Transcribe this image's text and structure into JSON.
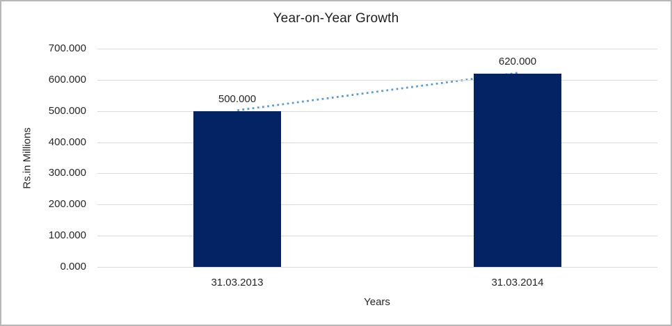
{
  "chart_data": {
    "type": "bar",
    "title": "Year-on-Year Growth",
    "categories": [
      "31.03.2013",
      "31.03.2014"
    ],
    "values": [
      500,
      620
    ],
    "data_labels": [
      "500.000",
      "620.000"
    ],
    "xlabel": "Years",
    "ylabel": "Rs.in Millions",
    "ylim": [
      0,
      700
    ],
    "ytick_step": 100,
    "ytick_labels": [
      "0.000",
      "100.000",
      "200.000",
      "300.000",
      "400.000",
      "500.000",
      "600.000",
      "700.000"
    ],
    "grid": true,
    "legend": "none",
    "trendline": {
      "style": "dotted",
      "connects": [
        "500.000",
        "620.000"
      ]
    },
    "colors": {
      "bar": "#032364",
      "trendline": "#5b9bd5",
      "gridline": "#d9d9d9",
      "text": "#262626",
      "border": "#b7b7b7",
      "background": "#ffffff"
    }
  }
}
